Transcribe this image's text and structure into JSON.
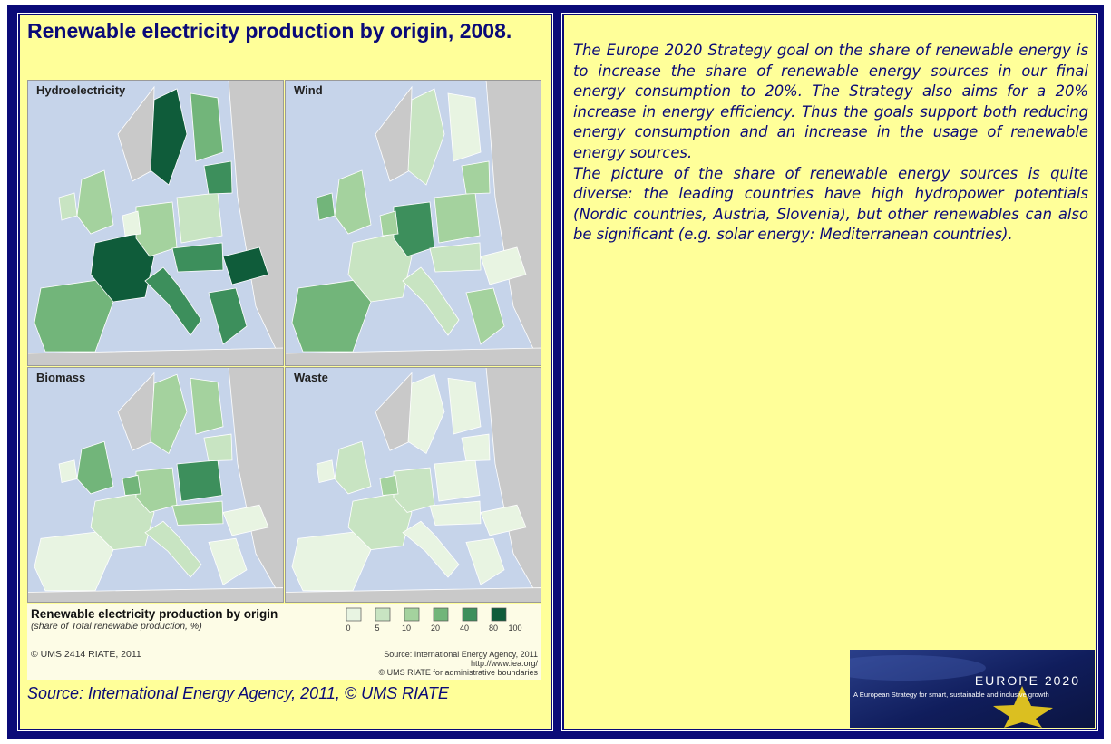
{
  "left": {
    "title": "Renewable electricity production by origin, 2008.",
    "map": {
      "panels": [
        "Hydroelectricity",
        "Wind",
        "Biomass",
        "Waste"
      ],
      "legend": {
        "title": "Renewable electricity production by origin",
        "subtitle": "(share of Total renewable production, %)",
        "labels": [
          0,
          5,
          10,
          20,
          40,
          80,
          100
        ],
        "colors": [
          "#e8f4e2",
          "#c8e4c2",
          "#a4d29e",
          "#72b57a",
          "#3d8f5c",
          "#0f5c3a"
        ]
      },
      "credit": "© UMS 2414 RIATE, 2011",
      "source_lines": [
        "Source: International Energy Agency, 2011",
        "http://www.iea.org/",
        "© UMS RIATE for administrative boundaries"
      ]
    },
    "caption": "Source: International Energy Agency, 2011, © UMS RIATE"
  },
  "right": {
    "paragraphs": [
      "The Europe 2020 Strategy goal on the share of renewable energy is to increase the share of renewable energy sources in our final energy consumption to 20%. The Strategy also aims for a 20% increase in energy efficiency. Thus the goals support both reducing energy consumption and an increase in the usage of renewable energy sources.",
      "The picture of the share of renewable energy sources is quite diverse: the leading countries have high hydropower potentials (Nordic countries, Austria, Slovenia), but other renewables can also be significant (e.g. solar energy: Mediterranean countries)."
    ],
    "logo": {
      "title": "EUROPE 2020",
      "subtitle": "A European Strategy for smart, sustainable and inclusive growth"
    }
  }
}
